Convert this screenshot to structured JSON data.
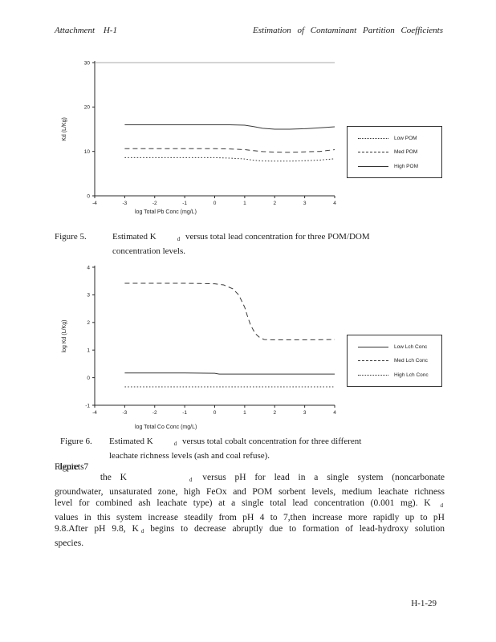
{
  "page": {
    "header_left": "Attachment H-1",
    "header_right": "Estimation of Contaminant Partition Coefficients",
    "footer": "H-1-29"
  },
  "figure5_caption": {
    "label": "Figure 5.",
    "pre": "Estimated K",
    "sub": "d",
    "post": " versus total lead concentration for three POM/DOM",
    "line2": "concentration levels."
  },
  "figure6_caption": {
    "label": "Figure 6.",
    "pre": "Estimated K",
    "sub": "d",
    "post": " versus total cobalt concentration for three different",
    "line2": "leachate richness levels (ash and coal refuse)."
  },
  "paragraph": {
    "overlap_a": "Figure 7",
    "overlap_b": "depicts",
    "p1": "the K",
    "sub1": "d",
    "p2": " versus pH for lead in a single system (noncarbonate groundwater, unsaturated zone, high FeOx and POM sorbent levels, medium leachate richness level for combined ash leachate type) at a single total lead concentration (0.001 mg). K",
    "sub2": "d",
    "p3": " values in this system increase steadily from pH 4 to 7,then increase more rapidly up to pH 9.8.After pH 9.8, K",
    "sub3": "d",
    "p4": " begins to decrease abruptly due to formation of lead-hydroxy solution species."
  },
  "chart_data": [
    {
      "type": "line",
      "title": "",
      "xlabel": "log Total Pb Conc (mg/L)",
      "ylabel": "Kd (L/Kg)",
      "xlim": [
        -4,
        4
      ],
      "ylim": [
        0,
        30
      ],
      "xticks": [
        -4,
        -3,
        -2,
        -1,
        0,
        1,
        2,
        3,
        4
      ],
      "yticks": [
        0,
        10,
        20,
        30
      ],
      "grid": false,
      "legend_position": "right-outside",
      "series": [
        {
          "name": "Low POM",
          "style": "dotted",
          "x": [
            -3,
            -2,
            -1,
            0,
            0.5,
            1,
            1.3,
            1.6,
            2,
            2.5,
            3,
            3.5,
            4
          ],
          "y": [
            8.6,
            8.6,
            8.6,
            8.6,
            8.5,
            8.3,
            8.0,
            7.85,
            7.8,
            7.8,
            7.9,
            8.05,
            8.35
          ]
        },
        {
          "name": "Med POM",
          "style": "dashed",
          "x": [
            -3,
            -2,
            -1,
            0,
            0.5,
            1,
            1.3,
            1.6,
            2,
            2.5,
            3,
            3.5,
            4
          ],
          "y": [
            10.6,
            10.6,
            10.6,
            10.6,
            10.55,
            10.4,
            10.15,
            9.95,
            9.85,
            9.8,
            9.9,
            10.0,
            10.4
          ]
        },
        {
          "name": "High POM",
          "style": "solid",
          "x": [
            -3,
            -2,
            -1,
            0,
            0.5,
            1,
            1.3,
            1.6,
            2,
            2.5,
            3,
            3.5,
            4
          ],
          "y": [
            16,
            16,
            16,
            16,
            16,
            15.9,
            15.6,
            15.2,
            15.0,
            15.0,
            15.1,
            15.3,
            15.55
          ]
        }
      ],
      "legend": [
        {
          "label": "Low POM",
          "style": "dotted"
        },
        {
          "label": "Med POM",
          "style": "dashed"
        },
        {
          "label": "High POM",
          "style": "solid"
        }
      ]
    },
    {
      "type": "line",
      "title": "",
      "xlabel": "log Total Co Conc (mg/L)",
      "ylabel": "log Kd (L/Kg)",
      "xlim": [
        -4,
        4
      ],
      "ylim": [
        -1,
        4
      ],
      "xticks": [
        -4,
        -3,
        -2,
        -1,
        0,
        1,
        2,
        3,
        4
      ],
      "yticks": [
        -1,
        0,
        1,
        2,
        3,
        4
      ],
      "grid": false,
      "legend_position": "right-outside",
      "series": [
        {
          "name": "Low Lch Conc",
          "style": "solid",
          "x": [
            -3,
            -2,
            -1,
            0,
            0.15,
            1,
            2,
            3,
            4
          ],
          "y": [
            0.17,
            0.17,
            0.17,
            0.16,
            0.13,
            0.13,
            0.13,
            0.13,
            0.13
          ]
        },
        {
          "name": "Med Lch Conc",
          "style": "dashed",
          "x": [
            -3,
            -2,
            -1,
            -0.5,
            0,
            0.3,
            0.6,
            0.8,
            1,
            1.1,
            1.2,
            1.35,
            1.5,
            1.65,
            2,
            3,
            4
          ],
          "y": [
            3.42,
            3.42,
            3.42,
            3.41,
            3.4,
            3.36,
            3.22,
            3.0,
            2.55,
            2.2,
            1.9,
            1.6,
            1.45,
            1.38,
            1.37,
            1.37,
            1.38
          ]
        },
        {
          "name": "High Lch Conc",
          "style": "dotted",
          "x": [
            -3,
            -2,
            -1,
            0,
            1,
            2,
            3,
            4
          ],
          "y": [
            -0.33,
            -0.33,
            -0.33,
            -0.33,
            -0.33,
            -0.33,
            -0.33,
            -0.33
          ]
        }
      ],
      "legend": [
        {
          "label": "Low Lch Conc",
          "style": "solid"
        },
        {
          "label": "Med Lch Conc",
          "style": "dashed"
        },
        {
          "label": "High Lch Conc",
          "style": "dotted"
        }
      ]
    }
  ]
}
